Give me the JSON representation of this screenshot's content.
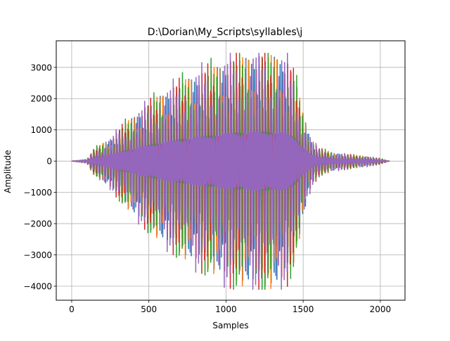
{
  "chart_data": {
    "type": "line",
    "title": "D:\\Dorian\\My_Scripts\\syllables\\j",
    "xlabel": "Samples",
    "ylabel": "Amplitude",
    "xlim": [
      -100,
      2160
    ],
    "ylim": [
      -4450,
      3850
    ],
    "xticks": [
      0,
      500,
      1000,
      1500,
      2000
    ],
    "yticks": [
      -4000,
      -3000,
      -2000,
      -1000,
      0,
      1000,
      2000,
      3000
    ],
    "grid": true,
    "legend": "none",
    "waveform": {
      "samples": 2060,
      "envelope_points": [
        [
          0,
          0
        ],
        [
          100,
          60
        ],
        [
          150,
          400
        ],
        [
          250,
          700
        ],
        [
          350,
          1200
        ],
        [
          450,
          1600
        ],
        [
          550,
          2000
        ],
        [
          650,
          2300
        ],
        [
          750,
          2600
        ],
        [
          850,
          2800
        ],
        [
          950,
          3000
        ],
        [
          1050,
          3200
        ],
        [
          1150,
          3300
        ],
        [
          1250,
          3350
        ],
        [
          1350,
          3300
        ],
        [
          1400,
          3100
        ],
        [
          1450,
          2600
        ],
        [
          1500,
          1500
        ],
        [
          1550,
          700
        ],
        [
          1600,
          400
        ],
        [
          1700,
          250
        ],
        [
          1800,
          200
        ],
        [
          1900,
          150
        ],
        [
          2000,
          80
        ],
        [
          2060,
          0
        ]
      ],
      "peak_max": 3450,
      "peak_min": -4100
    },
    "series": [
      {
        "color": "#1f77b4",
        "scale": 0.93,
        "phase": 0.0
      },
      {
        "color": "#ff7f0e",
        "scale": 0.96,
        "phase": 0.7
      },
      {
        "color": "#2ca02c",
        "scale": 1.0,
        "phase": 1.3
      },
      {
        "color": "#d62728",
        "scale": 0.98,
        "phase": 2.1
      },
      {
        "color": "#9467bd",
        "scale": 1.0,
        "phase": 2.8
      }
    ]
  }
}
